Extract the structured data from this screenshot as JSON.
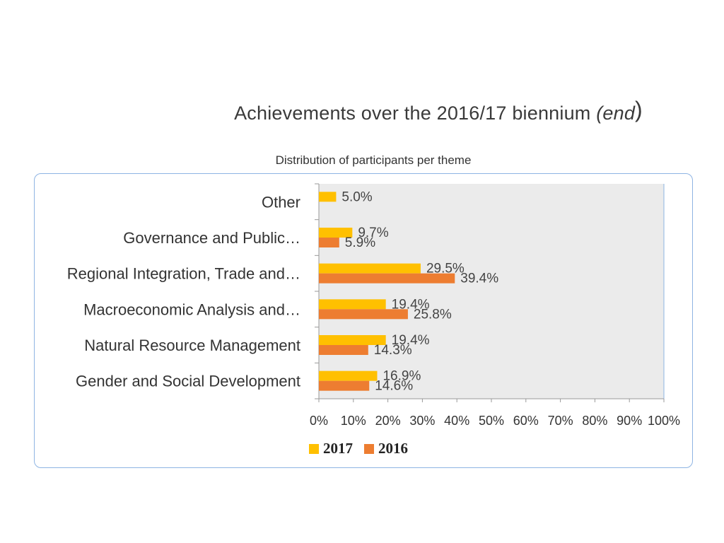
{
  "slide": {
    "title_main": "Achievements over the 2016/17 biennium ",
    "title_em": "(end",
    "title_close": ")"
  },
  "chart_data": {
    "type": "bar",
    "orientation": "horizontal",
    "title": "Distribution of participants per theme",
    "categories": [
      "Other",
      "Governance and Public…",
      "Regional Integration, Trade and…",
      "Macroeconomic Analysis and…",
      "Natural Resource Management",
      "Gender and Social Development"
    ],
    "series": [
      {
        "name": "2017",
        "color": "#ffc000",
        "values": [
          5.0,
          9.7,
          29.5,
          19.4,
          19.4,
          16.9
        ],
        "labels": [
          "5.0%",
          "9.7%",
          "29.5%",
          "19.4%",
          "19.4%",
          "16.9%"
        ]
      },
      {
        "name": "2016",
        "color": "#ed7d31",
        "values": [
          null,
          5.9,
          39.4,
          25.8,
          14.3,
          14.6
        ],
        "labels": [
          "",
          "5.9%",
          "39.4%",
          "25.8%",
          "14.3%",
          "14.6%"
        ]
      }
    ],
    "xlim": [
      0,
      100
    ],
    "x_ticks": [
      "0%",
      "10%",
      "20%",
      "30%",
      "40%",
      "50%",
      "60%",
      "70%",
      "80%",
      "90%",
      "100%"
    ],
    "legend_position": "bottom",
    "plot_background": "#ebebeb",
    "grid": false
  }
}
